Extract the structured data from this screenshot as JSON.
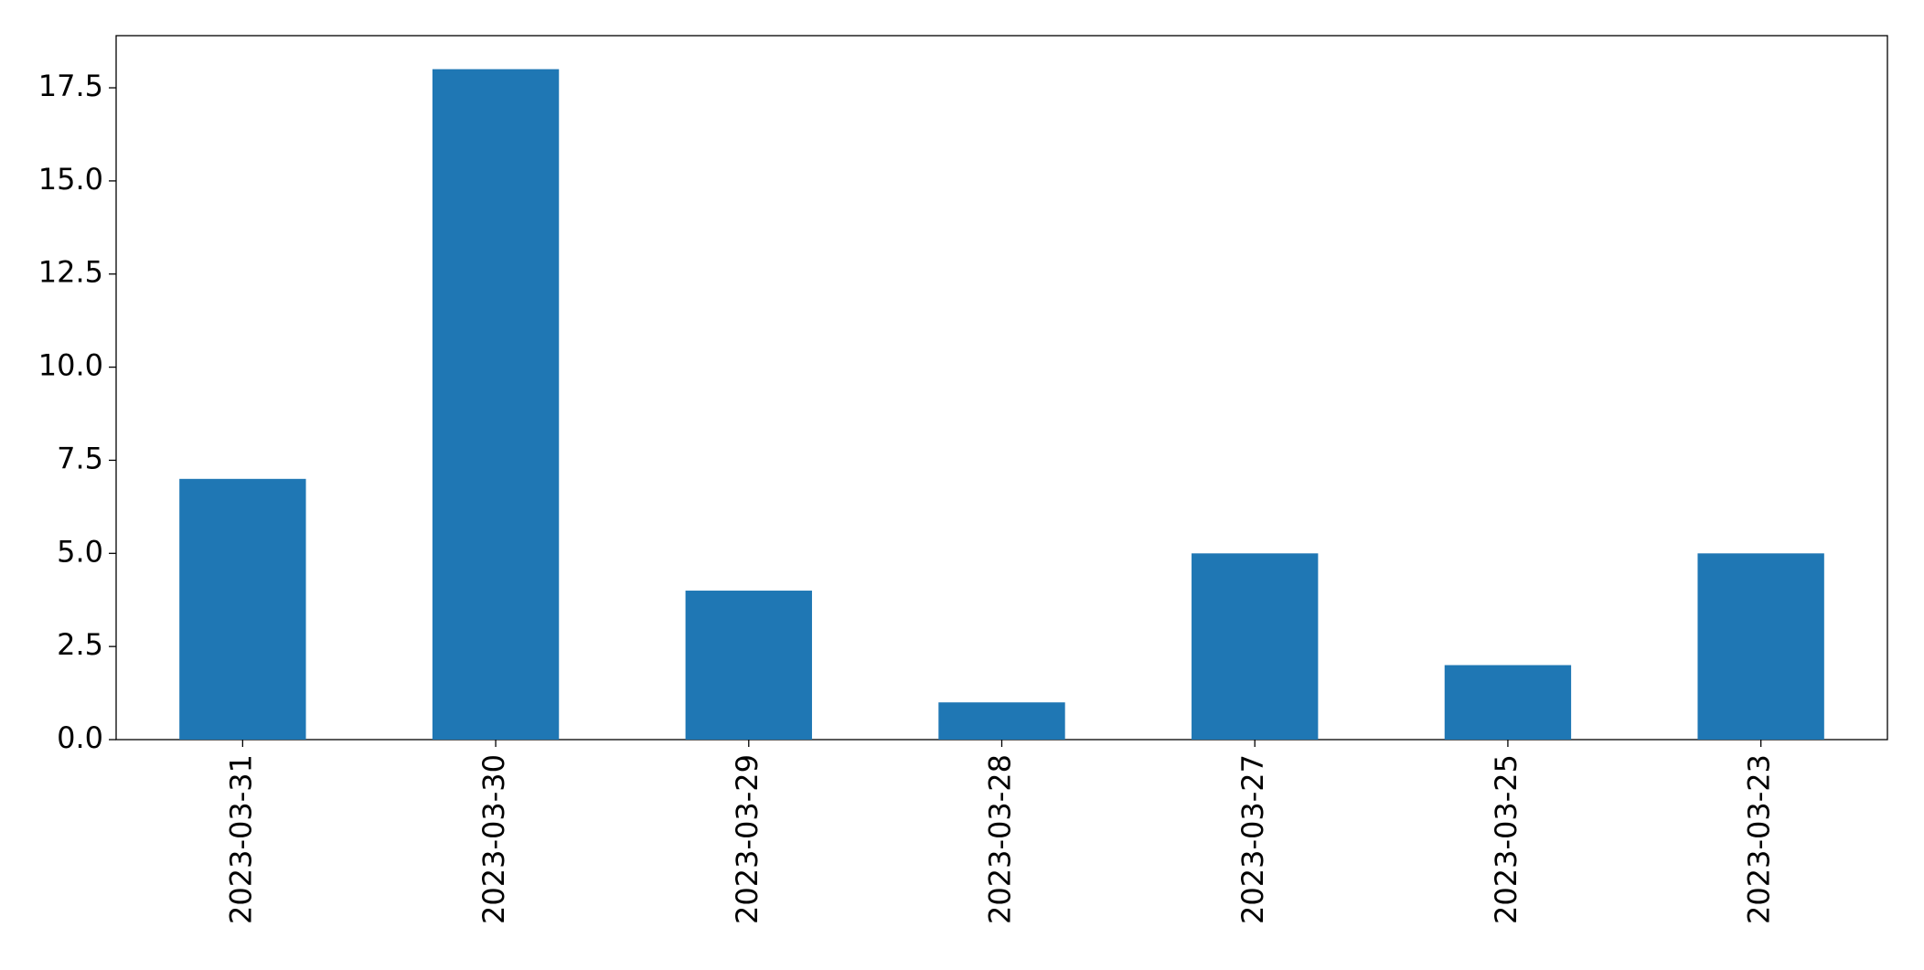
{
  "chart_data": {
    "type": "bar",
    "categories": [
      "2023-03-31",
      "2023-03-30",
      "2023-03-29",
      "2023-03-28",
      "2023-03-27",
      "2023-03-25",
      "2023-03-23"
    ],
    "values": [
      7,
      18,
      4,
      1,
      5,
      2,
      5
    ],
    "color": "#1f77b4",
    "ylim": [
      0,
      18.9
    ],
    "yticks": [
      {
        "value": 0,
        "label": "0.0"
      },
      2.5,
      {
        "value": 5,
        "label": "5.0"
      },
      7.5,
      {
        "value": 10,
        "label": "10.0"
      },
      12.5,
      {
        "value": 15,
        "label": "15.0"
      },
      17.5
    ],
    "grid": false
  }
}
